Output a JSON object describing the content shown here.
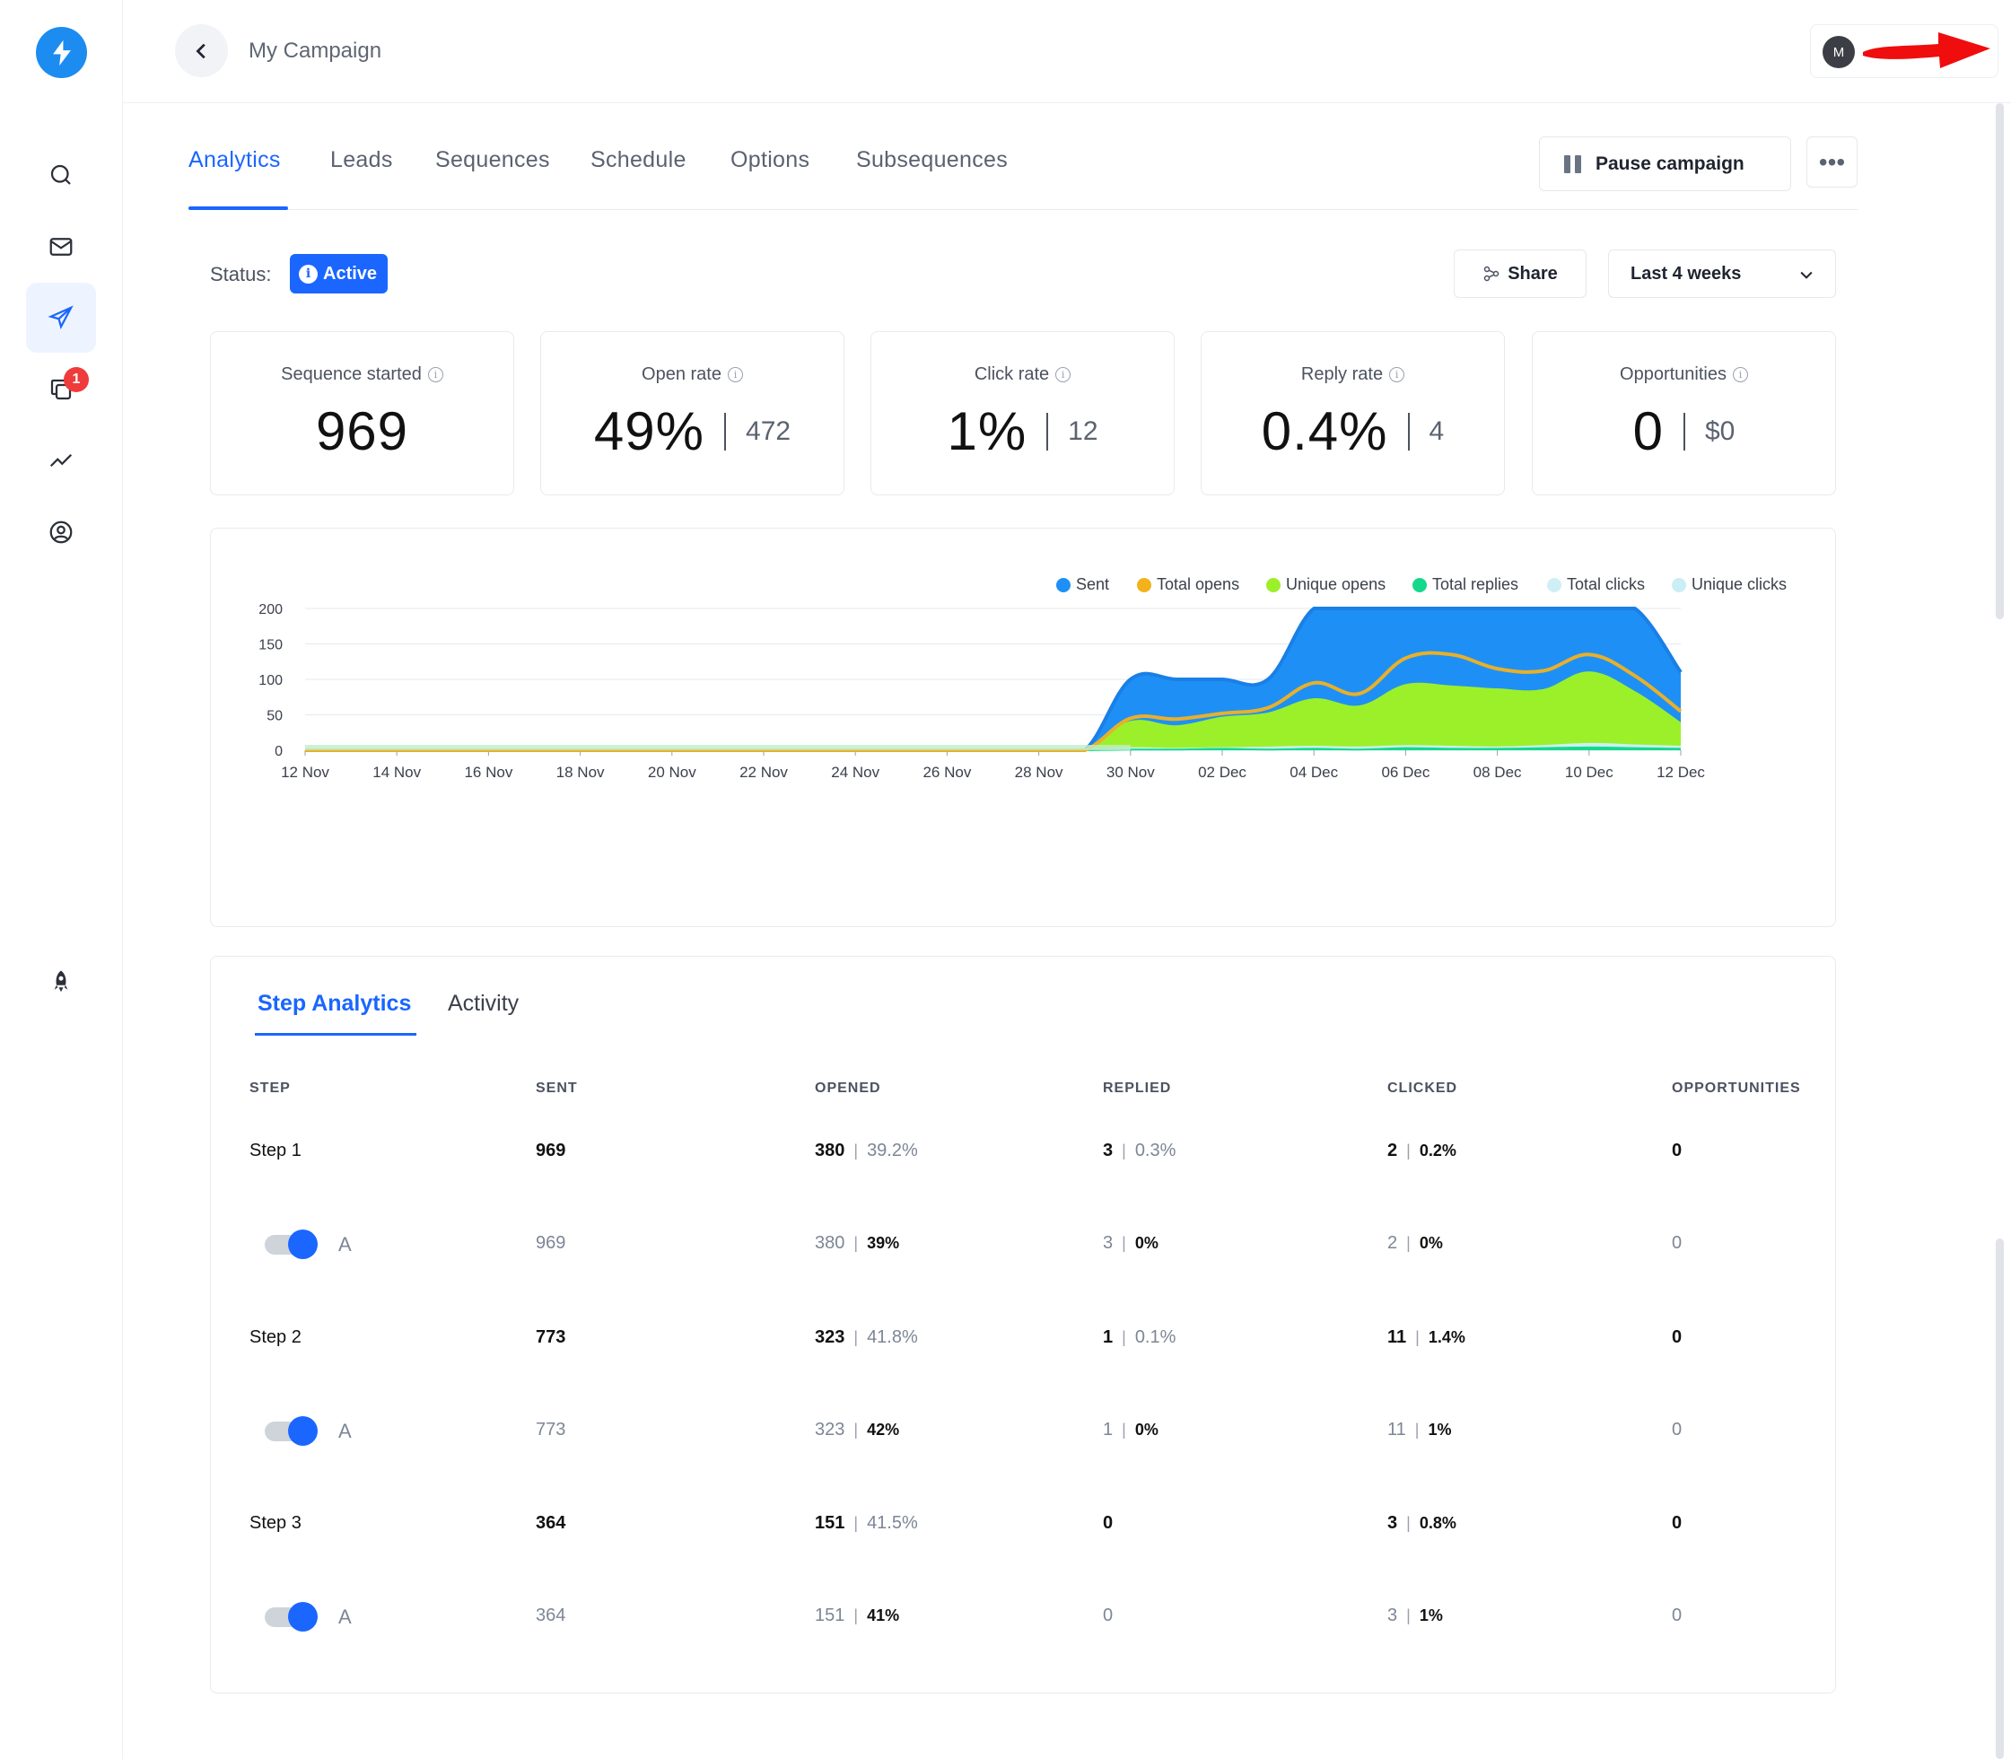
{
  "colors": {
    "accent": "#1a66ff",
    "sent": "#1e90f5",
    "total_opens": "#f2b21b",
    "unique_opens": "#9cf02a",
    "total_replies": "#14d98c",
    "total_clicks": "#cfeff6",
    "unique_clicks": "#c9eef4"
  },
  "header": {
    "title": "My Campaign",
    "avatar_initial": "M"
  },
  "sidebar": {
    "items": [
      {
        "icon": "search-icon"
      },
      {
        "icon": "mail-icon"
      },
      {
        "icon": "send-icon"
      },
      {
        "icon": "copy-icon",
        "badge": "1"
      },
      {
        "icon": "analytics-icon"
      },
      {
        "icon": "user-circle-icon"
      },
      {
        "icon": "rocket-icon"
      }
    ]
  },
  "tabs": [
    "Analytics",
    "Leads",
    "Sequences",
    "Schedule",
    "Options",
    "Subsequences"
  ],
  "actions": {
    "pause_label": "Pause campaign",
    "more_label": "•••"
  },
  "status": {
    "label": "Status:",
    "value": "Active"
  },
  "share_label": "Share",
  "date_range": "Last 4 weeks",
  "stats": [
    {
      "label": "Sequence started",
      "value": "969",
      "secondary": ""
    },
    {
      "label": "Open rate",
      "value": "49%",
      "secondary": "472"
    },
    {
      "label": "Click rate",
      "value": "1%",
      "secondary": "12"
    },
    {
      "label": "Reply rate",
      "value": "0.4%",
      "secondary": "4"
    },
    {
      "label": "Opportunities",
      "value": "0",
      "secondary": "$0"
    }
  ],
  "chart_data": {
    "type": "area",
    "legend_position": "top-right",
    "grid": true,
    "ylim": [
      0,
      200
    ],
    "yticks": [
      "0",
      "50",
      "100",
      "150",
      "200"
    ],
    "xticks": [
      "12 Nov",
      "14 Nov",
      "16 Nov",
      "18 Nov",
      "20 Nov",
      "22 Nov",
      "24 Nov",
      "26 Nov",
      "28 Nov",
      "30 Nov",
      "02 Dec",
      "04 Dec",
      "06 Dec",
      "08 Dec",
      "10 Dec",
      "12 Dec"
    ],
    "x": [
      "12 Nov",
      "13 Nov",
      "14 Nov",
      "15 Nov",
      "16 Nov",
      "17 Nov",
      "18 Nov",
      "19 Nov",
      "20 Nov",
      "21 Nov",
      "22 Nov",
      "23 Nov",
      "24 Nov",
      "25 Nov",
      "26 Nov",
      "27 Nov",
      "28 Nov",
      "29 Nov",
      "30 Nov",
      "01 Dec",
      "02 Dec",
      "03 Dec",
      "04 Dec",
      "05 Dec",
      "06 Dec",
      "07 Dec",
      "08 Dec",
      "09 Dec",
      "10 Dec",
      "11 Dec",
      "12 Dec"
    ],
    "series": [
      {
        "name": "Sent",
        "values": [
          0,
          0,
          0,
          0,
          0,
          0,
          0,
          0,
          0,
          0,
          0,
          0,
          0,
          0,
          0,
          0,
          0,
          0,
          100,
          100,
          100,
          100,
          200,
          200,
          200,
          200,
          200,
          200,
          200,
          200,
          110
        ]
      },
      {
        "name": "Total opens",
        "values": [
          0,
          0,
          0,
          0,
          0,
          0,
          0,
          0,
          0,
          0,
          0,
          0,
          0,
          0,
          0,
          0,
          0,
          0,
          45,
          44,
          52,
          60,
          95,
          80,
          130,
          135,
          115,
          112,
          135,
          105,
          55
        ]
      },
      {
        "name": "Unique opens",
        "values": [
          0,
          0,
          0,
          0,
          0,
          0,
          0,
          0,
          0,
          0,
          0,
          0,
          0,
          0,
          0,
          0,
          0,
          0,
          40,
          34,
          46,
          52,
          72,
          62,
          92,
          90,
          86,
          85,
          110,
          82,
          38
        ]
      },
      {
        "name": "Total replies",
        "values": [
          0,
          0,
          0,
          0,
          0,
          0,
          0,
          0,
          0,
          0,
          0,
          0,
          0,
          0,
          0,
          0,
          0,
          0,
          1,
          1,
          2,
          1,
          2,
          1,
          3,
          2,
          2,
          3,
          4,
          3,
          2
        ]
      },
      {
        "name": "Total clicks",
        "values": [
          0,
          0,
          0,
          0,
          0,
          0,
          0,
          0,
          0,
          0,
          0,
          0,
          0,
          0,
          0,
          0,
          0,
          0,
          3,
          2,
          3,
          4,
          5,
          4,
          6,
          5,
          4,
          6,
          9,
          7,
          5
        ]
      },
      {
        "name": "Unique clicks",
        "values": [
          0,
          0,
          0,
          0,
          0,
          0,
          0,
          0,
          0,
          0,
          0,
          0,
          0,
          0,
          0,
          0,
          0,
          0,
          2,
          2,
          3,
          3,
          4,
          4,
          5,
          4,
          4,
          5,
          7,
          6,
          4
        ]
      }
    ]
  },
  "step_tabs": [
    "Step Analytics",
    "Activity"
  ],
  "table": {
    "headers": [
      "STEP",
      "SENT",
      "OPENED",
      "REPLIED",
      "CLICKED",
      "OPPORTUNITIES"
    ],
    "rows": [
      {
        "kind": "step",
        "step": "Step 1",
        "sent": "969",
        "opened": [
          "380",
          "39.2%"
        ],
        "replied": [
          "3",
          "0.3%"
        ],
        "clicked": [
          "2",
          "0.2%"
        ],
        "opps": "0"
      },
      {
        "kind": "variant",
        "variant": "A",
        "sent": "969",
        "opened": [
          "380",
          "39%"
        ],
        "replied": [
          "3",
          "0%"
        ],
        "clicked": [
          "2",
          "0%"
        ],
        "opps": "0"
      },
      {
        "kind": "step",
        "step": "Step 2",
        "sent": "773",
        "opened": [
          "323",
          "41.8%"
        ],
        "replied": [
          "1",
          "0.1%"
        ],
        "clicked": [
          "11",
          "1.4%"
        ],
        "opps": "0"
      },
      {
        "kind": "variant",
        "variant": "A",
        "sent": "773",
        "opened": [
          "323",
          "42%"
        ],
        "replied": [
          "1",
          "0%"
        ],
        "clicked": [
          "11",
          "1%"
        ],
        "opps": "0"
      },
      {
        "kind": "step",
        "step": "Step 3",
        "sent": "364",
        "opened": [
          "151",
          "41.5%"
        ],
        "replied": [
          "0",
          ""
        ],
        "clicked": [
          "3",
          "0.8%"
        ],
        "opps": "0"
      },
      {
        "kind": "variant",
        "variant": "A",
        "sent": "364",
        "opened": [
          "151",
          "41%"
        ],
        "replied": [
          "0",
          ""
        ],
        "clicked": [
          "3",
          "1%"
        ],
        "opps": "0"
      }
    ]
  }
}
